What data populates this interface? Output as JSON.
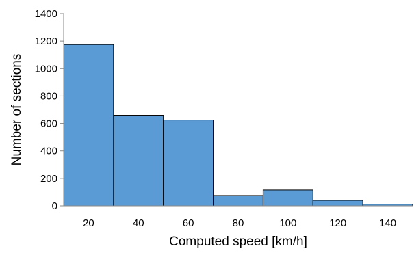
{
  "chart_data": {
    "type": "bar",
    "title": "",
    "xlabel": "Computed speed [km/h]",
    "ylabel": "Number of sections",
    "categories": [
      "20",
      "40",
      "60",
      "80",
      "100",
      "120",
      "140"
    ],
    "values": [
      1175,
      660,
      625,
      75,
      115,
      40,
      12
    ],
    "ylim": [
      0,
      1400
    ],
    "yticks": [
      "0",
      "200",
      "400",
      "600",
      "800",
      "1000",
      "1200",
      "1400"
    ],
    "grid": false,
    "legend": "none",
    "bar_color": "#5B9BD5"
  }
}
